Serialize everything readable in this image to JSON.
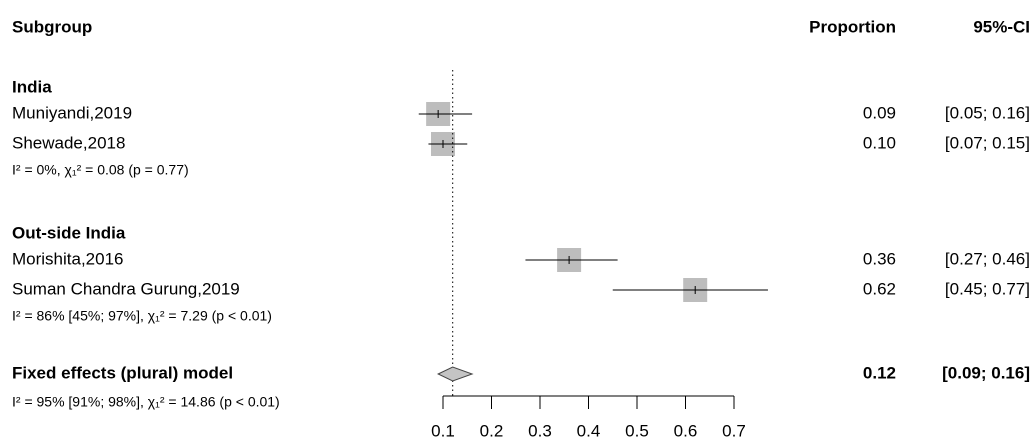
{
  "chart_data": {
    "type": "forest",
    "columns": {
      "subgroup": "Subgroup",
      "estimate": "Proportion",
      "ci": "95%-CI"
    },
    "groups": [
      {
        "name": "India",
        "studies": [
          {
            "name": "Muniyandi,2019",
            "value": 0.09,
            "lower": 0.05,
            "upper": 0.16,
            "value_label": "0.09",
            "ci_label": "[0.05; 0.16]"
          },
          {
            "name": "Shewade,2018",
            "value": 0.1,
            "lower": 0.07,
            "upper": 0.15,
            "value_label": "0.10",
            "ci_label": "[0.07; 0.15]"
          }
        ],
        "heterogeneity": "I² = 0%, χ₁² = 0.08 (p = 0.77)"
      },
      {
        "name": "Out-side India",
        "studies": [
          {
            "name": "Morishita,2016",
            "value": 0.36,
            "lower": 0.27,
            "upper": 0.46,
            "value_label": "0.36",
            "ci_label": "[0.27; 0.46]"
          },
          {
            "name": "Suman Chandra Gurung,2019",
            "value": 0.62,
            "lower": 0.45,
            "upper": 0.77,
            "value_label": "0.62",
            "ci_label": "[0.45; 0.77]"
          }
        ],
        "heterogeneity": "I² = 86% [45%; 97%], χ₁² = 7.29 (p < 0.01)"
      }
    ],
    "overall": {
      "name": "Fixed effects (plural) model",
      "value": 0.12,
      "lower": 0.09,
      "upper": 0.16,
      "value_label": "0.12",
      "ci_label": "[0.09; 0.16]",
      "heterogeneity": "I² = 95% [91%; 98%], χ₁² = 14.86 (p < 0.01)"
    },
    "box_color": "#bdbdbd",
    "diamond_color": "#c4c4c4",
    "xlim": [
      0.1,
      0.7
    ],
    "xticks": [
      0.1,
      0.2,
      0.3,
      0.4,
      0.5,
      0.6,
      0.7
    ]
  }
}
